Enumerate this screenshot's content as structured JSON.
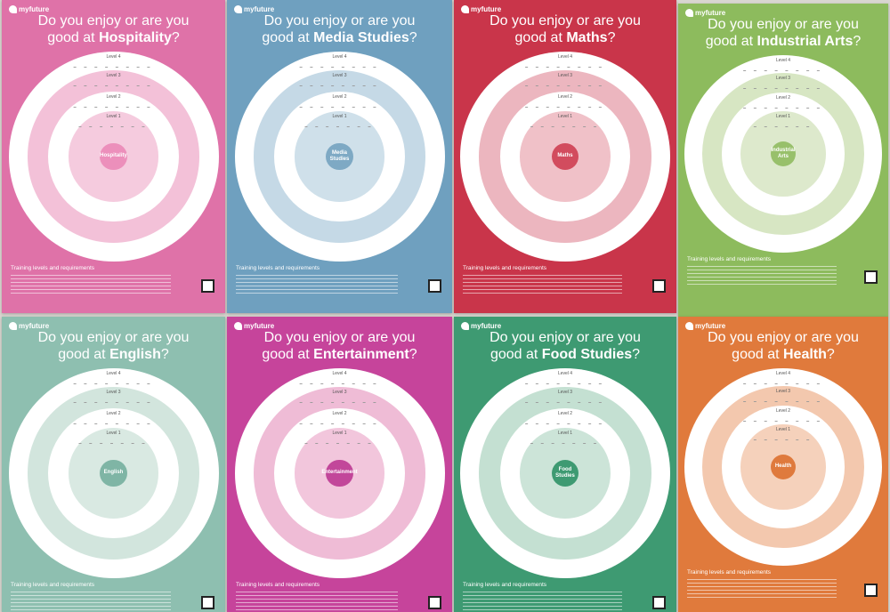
{
  "posters": [
    {
      "brand": "myfuture",
      "title_prefix": "Do you enjoy or are you good at ",
      "subject": "Hospitality",
      "center": "Hospitality",
      "levels": [
        "Level 4",
        "Level 3",
        "Level 2",
        "Level 1"
      ],
      "footer": "Training levels and requirements",
      "colors": {
        "bg": "#df72a8",
        "r2": "#f3c1d8",
        "r4": "#f5cbde",
        "mid": "#ec8fbb"
      }
    },
    {
      "brand": "myfuture",
      "title_prefix": "Do you enjoy or are you good at ",
      "subject": "Media Studies",
      "center": "Media Studies",
      "levels": [
        "Level 4",
        "Level 3",
        "Level 2",
        "Level 1"
      ],
      "footer": "Training levels and requirements",
      "colors": {
        "bg": "#6fa0bf",
        "r2": "#c5d9e6",
        "r4": "#cfe0ea",
        "mid": "#7ea9c4"
      }
    },
    {
      "brand": "myfuture",
      "title_prefix": "Do you enjoy or are you good at ",
      "subject": "Maths",
      "center": "Maths",
      "levels": [
        "Level 4",
        "Level 3",
        "Level 2",
        "Level 1"
      ],
      "footer": "Training levels and requirements",
      "colors": {
        "bg": "#c9354a",
        "r2": "#ecb6bf",
        "r4": "#f0c1c8",
        "mid": "#d24c5e"
      }
    },
    {
      "brand": "myfuture",
      "title_prefix": "Do you enjoy or are you good at ",
      "subject": "Industrial Arts",
      "center": "Industrial Arts",
      "levels": [
        "Level 4",
        "Level 3",
        "Level 2",
        "Level 1"
      ],
      "footer": "Training levels and requirements",
      "colors": {
        "bg": "#8dbb5d",
        "r2": "#d7e6c3",
        "r4": "#dde9cc",
        "mid": "#98c06b"
      }
    },
    {
      "brand": "myfuture",
      "title_prefix": "Do you enjoy or are you good at ",
      "subject": "English",
      "center": "English",
      "levels": [
        "Level 4",
        "Level 3",
        "Level 2",
        "Level 1"
      ],
      "footer": "Training levels and requirements",
      "colors": {
        "bg": "#8ebfb0",
        "r2": "#d2e5dd",
        "r4": "#d9e9e2",
        "mid": "#7fb5a5"
      }
    },
    {
      "brand": "myfuture",
      "title_prefix": "Do you enjoy or are you good at ",
      "subject": "Entertainment",
      "center": "Entertainment",
      "levels": [
        "Level 4",
        "Level 3",
        "Level 2",
        "Level 1"
      ],
      "footer": "Training levels and requirements",
      "colors": {
        "bg": "#c6449b",
        "r2": "#efbcd6",
        "r4": "#f2c6dc",
        "mid": "#c2479a"
      }
    },
    {
      "brand": "myfuture",
      "title_prefix": "Do you enjoy or are you good at ",
      "subject": "Food Studies",
      "center": "Food Studies",
      "levels": [
        "Level 4",
        "Level 3",
        "Level 2",
        "Level 1"
      ],
      "footer": "Training levels and requirements",
      "colors": {
        "bg": "#3e9a72",
        "r2": "#c4e0d2",
        "r4": "#cce4d8",
        "mid": "#3e9a72"
      }
    },
    {
      "brand": "myfuture",
      "title_prefix": "Do you enjoy or are you good at ",
      "subject": "Health",
      "center": "Health",
      "levels": [
        "Level 4",
        "Level 3",
        "Level 2",
        "Level 1"
      ],
      "footer": "Training levels and requirements",
      "colors": {
        "bg": "#e07a3c",
        "r2": "#f3c8ae",
        "r4": "#f5d1bb",
        "mid": "#df7a3d"
      }
    }
  ]
}
